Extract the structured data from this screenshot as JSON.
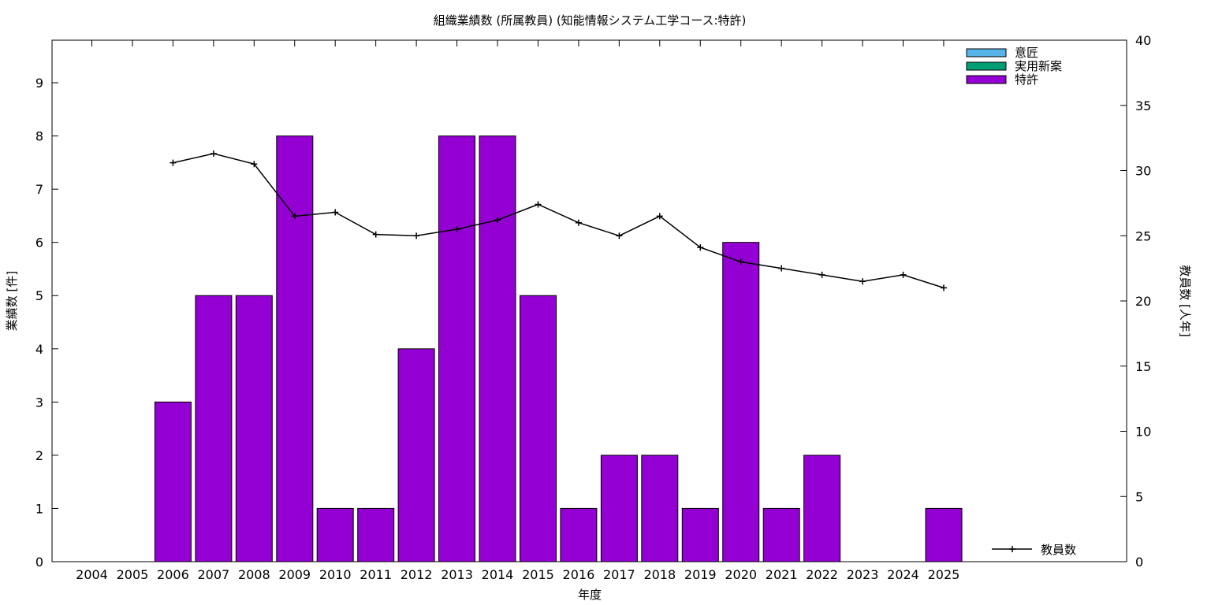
{
  "chart_data": {
    "type": "bar",
    "title": "組織業績数 (所属教員) (知能情報システム工学コース:特許)",
    "xlabel": "年度",
    "ylabel": "業績数 [件]",
    "y2label": "教員数 [人年]",
    "categories": [
      "2004",
      "2005",
      "2006",
      "2007",
      "2008",
      "2009",
      "2010",
      "2011",
      "2012",
      "2013",
      "2014",
      "2015",
      "2016",
      "2017",
      "2018",
      "2019",
      "2020",
      "2021",
      "2022",
      "2023",
      "2024",
      "2025"
    ],
    "ylim": [
      0,
      9.8
    ],
    "y2lim": [
      0,
      40
    ],
    "yticks": [
      "0",
      "1",
      "2",
      "3",
      "4",
      "5",
      "6",
      "7",
      "8",
      "9"
    ],
    "y2ticks": [
      "0",
      "5",
      "10",
      "15",
      "20",
      "25",
      "30",
      "35",
      "40"
    ],
    "series": [
      {
        "name": "意匠",
        "color": "#56b4e9",
        "values": [
          0,
          0,
          0,
          0,
          0,
          0,
          0,
          0,
          0,
          0,
          0,
          0,
          0,
          0,
          0,
          0,
          0,
          0,
          0,
          0,
          0,
          0
        ]
      },
      {
        "name": "実用新案",
        "color": "#009e73",
        "values": [
          0,
          0,
          0,
          0,
          0,
          0,
          0,
          0,
          0,
          0,
          0,
          0,
          0,
          0,
          0,
          0,
          0,
          0,
          0,
          0,
          0,
          0
        ]
      },
      {
        "name": "特許",
        "color": "#9400d3",
        "values": [
          0,
          0,
          3,
          5,
          5,
          8,
          1,
          1,
          4,
          8,
          8,
          5,
          1,
          2,
          2,
          1,
          6,
          1,
          2,
          0,
          0,
          1
        ]
      }
    ],
    "line_series": {
      "name": "教員数",
      "axis": "right",
      "color": "#000000",
      "values": [
        null,
        null,
        30.6,
        31.3,
        30.5,
        26.5,
        26.8,
        25.1,
        25.0,
        25.5,
        26.2,
        27.4,
        26.0,
        25.0,
        26.5,
        24.1,
        23.0,
        22.5,
        22.0,
        21.5,
        22.0,
        21.0
      ]
    },
    "legend_position": "top-right",
    "grid": false
  }
}
